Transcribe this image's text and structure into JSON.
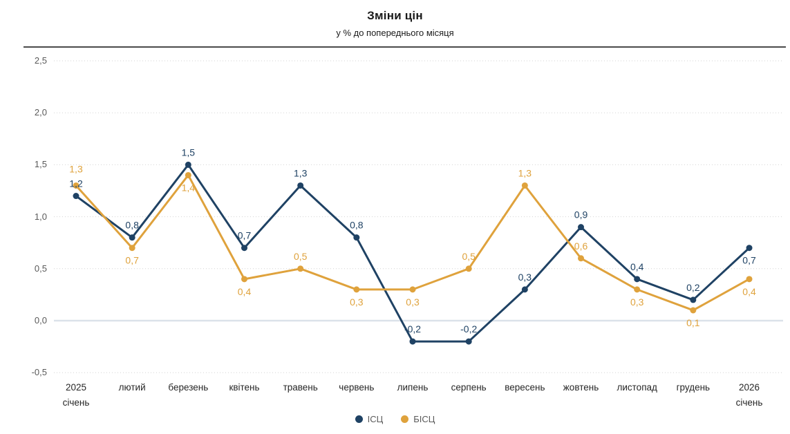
{
  "header": {
    "title": "Зміни цін",
    "subtitle": "у % до попереднього місяця"
  },
  "chart_data": {
    "type": "line",
    "title": "Зміни цін",
    "subtitle": "у % до попереднього місяця",
    "categories": [
      "2025\nсічень",
      "лютий",
      "березень",
      "квітень",
      "травень",
      "червень",
      "липень",
      "серпень",
      "вересень",
      "жовтень",
      "листопад",
      "грудень",
      "2026\nсічень"
    ],
    "y_axis": {
      "range": [
        -0.5,
        2.5
      ],
      "gridlines": "dotted-horizontal",
      "ticks": [
        {
          "label": "2,5",
          "value": 2.5
        },
        {
          "label": "2,0",
          "value": 2.0
        },
        {
          "label": "1,5",
          "value": 1.5
        },
        {
          "label": "1,0",
          "value": 1.0
        },
        {
          "label": "0,5",
          "value": 0.5
        },
        {
          "label": "0,0",
          "value": 0.0
        },
        {
          "label": "-0,5",
          "value": -0.5
        }
      ]
    },
    "series": [
      {
        "name": "ІСЦ",
        "color": "#1F4264",
        "values": [
          1.2,
          0.8,
          1.5,
          0.7,
          1.3,
          0.8,
          -0.2,
          -0.2,
          0.3,
          0.9,
          0.4,
          0.2,
          0.7
        ],
        "labels": [
          "1,2",
          "0,8",
          "1,5",
          "0,7",
          "1,3",
          "0,8",
          "-0,2",
          "-0,2",
          "0,3",
          "0,9",
          "0,4",
          "0,2",
          "0,7"
        ],
        "label_pos": [
          "above",
          "above",
          "above",
          "above",
          "above",
          "above",
          "above",
          "above",
          "above",
          "above",
          "above",
          "above",
          "below"
        ]
      },
      {
        "name": "БІСЦ",
        "color": "#DFA23C",
        "values": [
          1.3,
          0.7,
          1.4,
          0.4,
          0.5,
          0.3,
          0.3,
          0.5,
          1.3,
          0.6,
          0.3,
          0.1,
          0.4
        ],
        "labels": [
          "1,3",
          "0,7",
          "1,4",
          "0,4",
          "0,5",
          "0,3",
          "0,3",
          "0,5",
          "1,3",
          "0,6",
          "0,3",
          "0,1",
          "0,4"
        ],
        "label_pos": [
          "above-far",
          "below",
          "below",
          "below",
          "above",
          "below",
          "below",
          "above",
          "above",
          "above",
          "below",
          "below",
          "below"
        ]
      }
    ],
    "legend": {
      "position": "bottom-center",
      "items": [
        "ІСЦ",
        "БІСЦ"
      ]
    },
    "style": {
      "grid_color": "#d2d2d2",
      "zero_line_color": "#dbe2ea",
      "axis_text_color": "#595959",
      "category_text_color": "#262626",
      "legend_text_color": "#595959"
    }
  }
}
